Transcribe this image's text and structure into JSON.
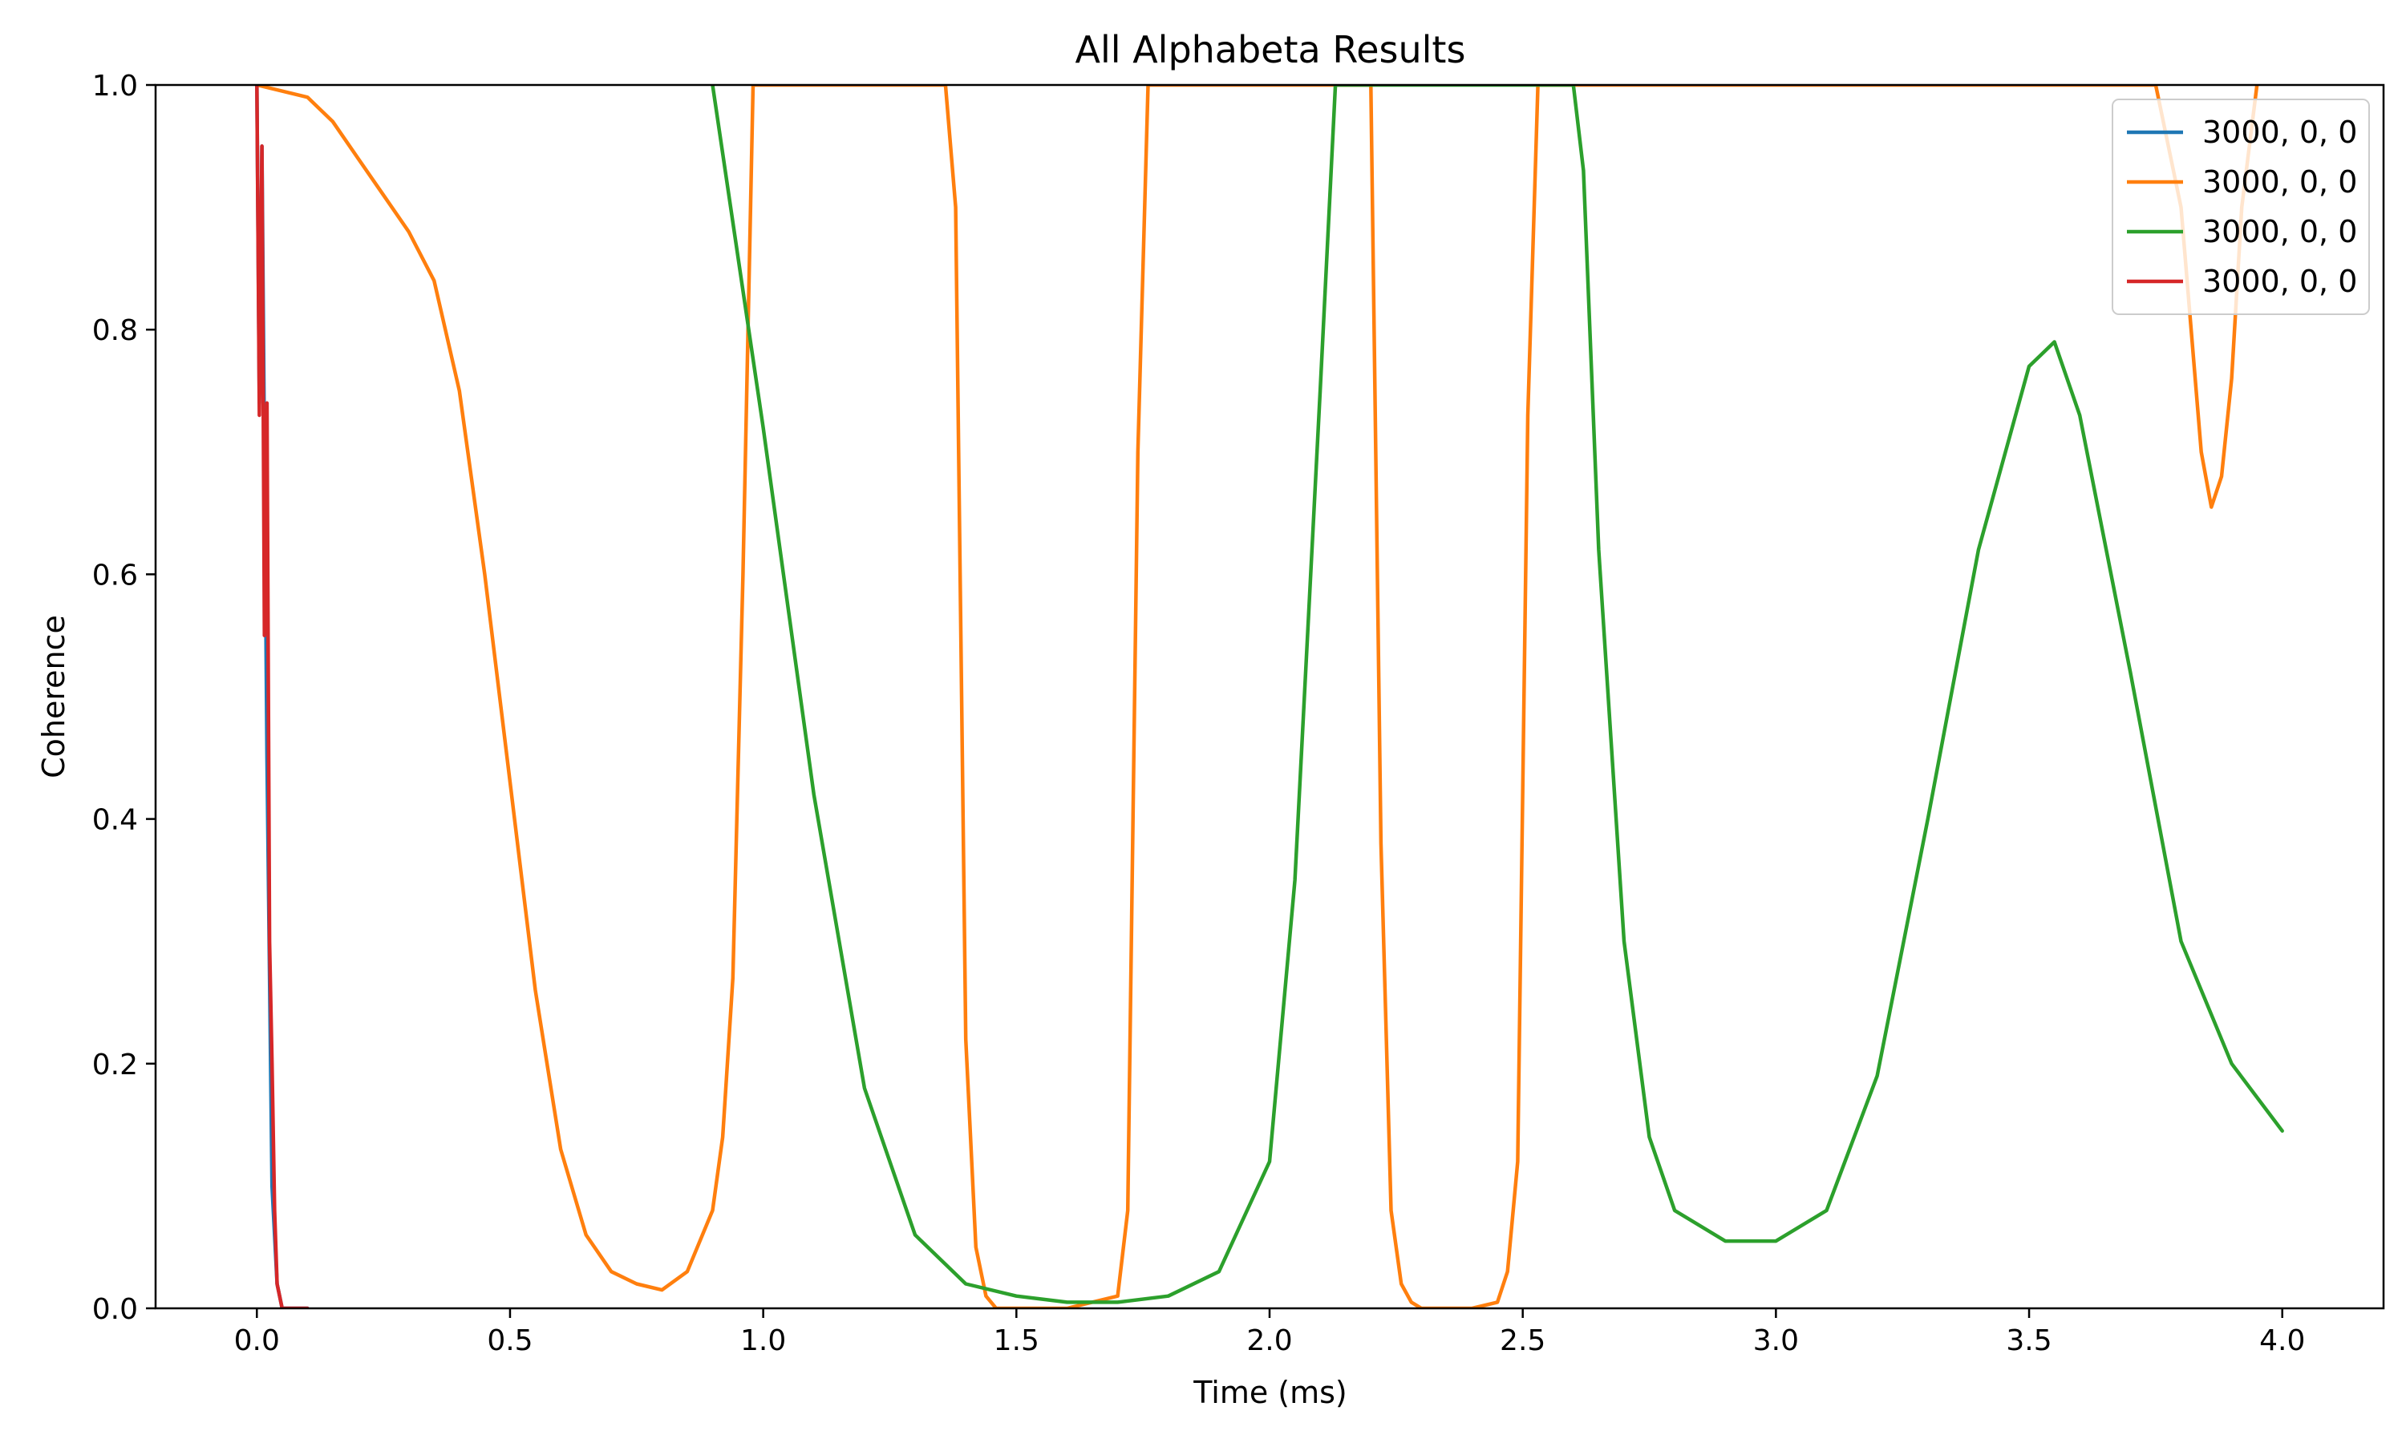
{
  "chart_data": {
    "type": "line",
    "title": "All Alphabeta Results",
    "xlabel": "Time (ms)",
    "ylabel": "Coherence",
    "xlim": [
      -0.2,
      4.2
    ],
    "ylim": [
      0.0,
      1.0
    ],
    "xticks": [
      "0.0",
      "0.5",
      "1.0",
      "1.5",
      "2.0",
      "2.5",
      "3.0",
      "3.5",
      "4.0"
    ],
    "yticks": [
      "0.0",
      "0.2",
      "0.4",
      "0.6",
      "0.8",
      "1.0"
    ],
    "grid": false,
    "legend_position": "top-right",
    "series": [
      {
        "name": "3000, 0, 0",
        "color": "#1f77b4",
        "x": [
          0.0,
          0.005,
          0.01,
          0.02,
          0.03,
          0.04,
          0.05,
          0.1
        ],
        "y": [
          1.0,
          0.74,
          0.95,
          0.45,
          0.1,
          0.02,
          0.0,
          0.0
        ]
      },
      {
        "name": "3000, 0, 0",
        "color": "#ff7f0e",
        "x": [
          0.0,
          0.1,
          0.15,
          0.2,
          0.25,
          0.3,
          0.35,
          0.4,
          0.45,
          0.5,
          0.55,
          0.6,
          0.65,
          0.7,
          0.75,
          0.8,
          0.85,
          0.9,
          0.92,
          0.94,
          0.96,
          0.98,
          1.0,
          1.3,
          1.36,
          1.38,
          1.4,
          1.42,
          1.44,
          1.46,
          1.5,
          1.6,
          1.7,
          1.72,
          1.74,
          1.76,
          1.9,
          2.2,
          2.22,
          2.24,
          2.26,
          2.28,
          2.3,
          2.35,
          2.4,
          2.45,
          2.47,
          2.49,
          2.51,
          2.53,
          2.6,
          3.75,
          3.8,
          3.82,
          3.84,
          3.86,
          3.88,
          3.9,
          3.92,
          3.95
        ],
        "y": [
          1.0,
          0.99,
          0.97,
          0.94,
          0.91,
          0.88,
          0.84,
          0.75,
          0.6,
          0.43,
          0.26,
          0.13,
          0.06,
          0.03,
          0.02,
          0.015,
          0.03,
          0.08,
          0.14,
          0.27,
          0.6,
          1.0,
          1.0,
          1.0,
          1.0,
          0.9,
          0.22,
          0.05,
          0.01,
          0.0,
          0.0,
          0.0,
          0.01,
          0.08,
          0.7,
          1.0,
          1.0,
          1.0,
          0.38,
          0.08,
          0.02,
          0.005,
          0.0,
          0.0,
          0.0,
          0.005,
          0.03,
          0.12,
          0.73,
          1.0,
          1.0,
          1.0,
          0.9,
          0.8,
          0.7,
          0.655,
          0.68,
          0.76,
          0.9,
          1.0
        ]
      },
      {
        "name": "3000, 0, 0",
        "color": "#2ca02c",
        "x": [
          0.9,
          1.0,
          1.1,
          1.2,
          1.3,
          1.4,
          1.5,
          1.6,
          1.7,
          1.8,
          1.9,
          2.0,
          2.05,
          2.1,
          2.13,
          2.15,
          2.6,
          2.62,
          2.65,
          2.7,
          2.75,
          2.8,
          2.9,
          3.0,
          3.1,
          3.2,
          3.3,
          3.4,
          3.5,
          3.55,
          3.6,
          3.7,
          3.8,
          3.9,
          4.0
        ],
        "y": [
          1.0,
          0.72,
          0.42,
          0.18,
          0.06,
          0.02,
          0.01,
          0.005,
          0.005,
          0.01,
          0.03,
          0.12,
          0.35,
          0.75,
          1.0,
          1.0,
          1.0,
          0.93,
          0.62,
          0.3,
          0.14,
          0.08,
          0.055,
          0.055,
          0.08,
          0.19,
          0.4,
          0.62,
          0.77,
          0.79,
          0.73,
          0.52,
          0.3,
          0.2,
          0.145
        ]
      },
      {
        "name": "3000, 0, 0",
        "color": "#d62728",
        "x": [
          0.0,
          0.005,
          0.01,
          0.015,
          0.02,
          0.025,
          0.03,
          0.035,
          0.04,
          0.05,
          0.06,
          0.08,
          0.1
        ],
        "y": [
          1.0,
          0.73,
          0.95,
          0.55,
          0.74,
          0.3,
          0.2,
          0.08,
          0.02,
          0.0,
          0.0,
          0.0,
          0.0
        ]
      }
    ]
  }
}
